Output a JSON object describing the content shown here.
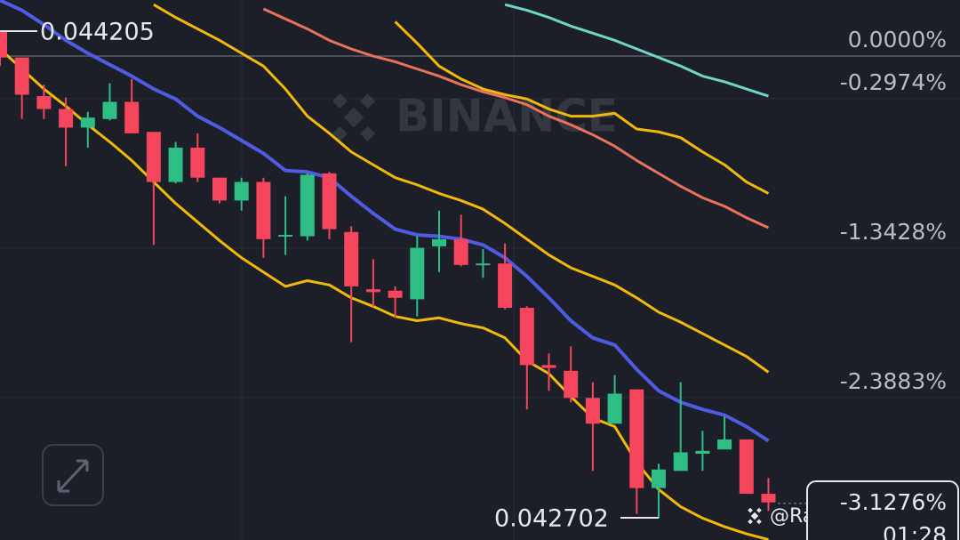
{
  "chart_data": {
    "type": "candlestick",
    "categories": [
      null,
      null,
      null,
      null,
      null,
      null,
      null,
      null,
      null,
      null,
      null,
      null,
      null,
      null,
      null,
      null,
      null,
      null,
      null,
      null,
      null,
      null,
      null,
      null,
      null,
      null,
      null,
      null,
      null,
      null,
      null,
      null,
      null,
      null,
      null,
      null
    ],
    "open": [
      0.17,
      -0.01,
      -0.28,
      -0.37,
      -0.5,
      -0.44,
      -0.32,
      -0.53,
      -0.88,
      -0.64,
      -0.85,
      -1.01,
      -0.88,
      -1.26,
      -1.26,
      -0.82,
      -1.23,
      -1.63,
      -1.64,
      -1.7,
      -1.33,
      -1.28,
      -1.46,
      -1.45,
      -1.76,
      -2.16,
      -2.2,
      -2.39,
      -2.57,
      -2.33,
      -3.02,
      -2.9,
      -2.78,
      -2.75,
      -2.68,
      -3.06
    ],
    "high": [
      0.17,
      -0.01,
      -0.2,
      -0.29,
      -0.39,
      -0.19,
      -0.16,
      -0.53,
      -0.6,
      -0.54,
      -0.85,
      -0.85,
      -0.85,
      -0.98,
      -0.82,
      -0.81,
      -1.19,
      -1.42,
      -1.61,
      -1.26,
      -1.08,
      -1.11,
      -1.35,
      -1.31,
      -1.75,
      -2.08,
      -2.03,
      -2.28,
      -2.23,
      -2.33,
      -2.85,
      -2.28,
      -2.62,
      -2.52,
      -2.68,
      -2.95
    ],
    "low": [
      -0.07,
      -0.44,
      -0.44,
      -0.77,
      -0.64,
      -0.45,
      -0.54,
      -1.32,
      -0.89,
      -0.88,
      -1.03,
      -1.08,
      -1.41,
      -1.39,
      -1.29,
      -1.28,
      -2.0,
      -1.75,
      -1.83,
      -1.82,
      -1.51,
      -1.47,
      -1.55,
      -1.77,
      -2.47,
      -2.34,
      -2.42,
      -2.9,
      -2.57,
      -3.2,
      -3.23,
      -2.9,
      -2.9,
      -2.75,
      -3.06,
      -3.18
    ],
    "close": [
      -0.01,
      -0.27,
      -0.37,
      -0.5,
      -0.43,
      -0.32,
      -0.54,
      -0.88,
      -0.64,
      -0.85,
      -1.01,
      -0.88,
      -1.28,
      -1.25,
      -0.83,
      -1.21,
      -1.61,
      -1.65,
      -1.69,
      -1.34,
      -1.28,
      -1.46,
      -1.45,
      -1.76,
      -2.16,
      -2.18,
      -2.39,
      -2.57,
      -2.36,
      -3.02,
      -2.89,
      -2.77,
      -2.76,
      -2.68,
      -3.06,
      -3.12
    ],
    "up_color": "#2ebd85",
    "down_color": "#f6465d",
    "series": [
      {
        "color": "#4f5be0",
        "values": [
          0.39,
          0.32,
          0.22,
          0.11,
          0.02,
          -0.06,
          -0.14,
          -0.23,
          -0.3,
          -0.42,
          -0.5,
          -0.59,
          -0.68,
          -0.8,
          -0.81,
          -0.85,
          -0.98,
          -1.1,
          -1.21,
          -1.25,
          -1.26,
          -1.28,
          -1.32,
          -1.41,
          -1.54,
          -1.69,
          -1.85,
          -1.97,
          -2.02,
          -2.19,
          -2.34,
          -2.42,
          -2.47,
          -2.51,
          -2.59,
          -2.69
        ]
      },
      {
        "color": "#f0b90b",
        "values": [
          0.05,
          -0.09,
          -0.23,
          -0.35,
          -0.48,
          -0.6,
          -0.73,
          -0.88,
          -1.03,
          -1.16,
          -1.29,
          -1.41,
          -1.51,
          -1.61,
          -1.57,
          -1.6,
          -1.69,
          -1.75,
          -1.82,
          -1.85,
          -1.83,
          -1.87,
          -1.9,
          -1.97,
          -2.13,
          -2.22,
          -2.38,
          -2.53,
          -2.59,
          -2.84,
          -3.03,
          -3.15,
          -3.23,
          -3.29,
          -3.34,
          -3.38
        ]
      },
      {
        "color": "#f0b90b",
        "values": [
          null,
          null,
          null,
          null,
          null,
          null,
          null,
          0.36,
          0.27,
          0.19,
          0.11,
          0.02,
          -0.07,
          -0.23,
          -0.42,
          -0.54,
          -0.67,
          -0.76,
          -0.85,
          -0.9,
          -0.96,
          -1.01,
          -1.07,
          -1.17,
          -1.28,
          -1.39,
          -1.48,
          -1.54,
          -1.6,
          -1.69,
          -1.79,
          -1.86,
          -1.94,
          -2.02,
          -2.1,
          -2.21
        ]
      },
      {
        "color": "#f0b90b",
        "values": [
          null,
          null,
          null,
          null,
          null,
          null,
          null,
          null,
          null,
          null,
          null,
          null,
          null,
          null,
          null,
          null,
          null,
          null,
          0.24,
          0.09,
          -0.07,
          -0.16,
          -0.23,
          -0.27,
          -0.3,
          -0.37,
          -0.42,
          -0.42,
          -0.4,
          -0.51,
          -0.53,
          -0.57,
          -0.67,
          -0.76,
          -0.88,
          -0.96
        ]
      },
      {
        "color": "#e8735a",
        "values": [
          null,
          null,
          null,
          null,
          null,
          null,
          null,
          null,
          null,
          null,
          null,
          null,
          0.33,
          0.26,
          0.19,
          0.11,
          0.05,
          0,
          -0.04,
          -0.09,
          -0.14,
          -0.2,
          -0.25,
          -0.29,
          -0.34,
          -0.42,
          -0.48,
          -0.55,
          -0.63,
          -0.73,
          -0.82,
          -0.91,
          -0.99,
          -1.05,
          -1.13,
          -1.2
        ]
      },
      {
        "color": "#6fd6c4",
        "values": [
          null,
          null,
          null,
          null,
          null,
          null,
          null,
          null,
          null,
          null,
          null,
          null,
          null,
          null,
          null,
          null,
          null,
          null,
          null,
          null,
          null,
          null,
          null,
          0.36,
          0.32,
          0.27,
          0.21,
          0.16,
          0.11,
          0.05,
          -0.01,
          -0.07,
          -0.14,
          -0.18,
          -0.23,
          -0.28
        ]
      }
    ],
    "ylim": [
      -3.383,
      0.392
    ],
    "yticks": [
      {
        "value": 0,
        "label": "0.0000%"
      },
      {
        "value": -0.2974,
        "label": "-0.2974%"
      },
      {
        "value": -1.3428,
        "label": "-1.3428%"
      },
      {
        "value": -2.3883,
        "label": "-2.3883%"
      }
    ],
    "grid": true,
    "current": {
      "value": -3.1276,
      "label": "-3.1276%",
      "countdown": "01:28"
    },
    "high_label": "0.044205",
    "low_label": "0.042702",
    "watermark": "BINANCE",
    "credit": "@RaheelKamboh"
  }
}
